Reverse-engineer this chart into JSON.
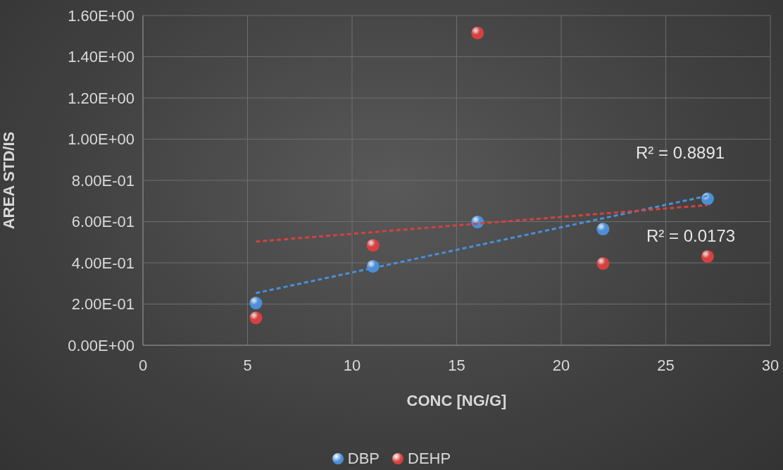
{
  "chart_data": {
    "type": "scatter",
    "xlabel": "CONC [NG/G]",
    "ylabel": "AREA STD/IS",
    "xlim": [
      0,
      30
    ],
    "xticks": [
      0,
      5,
      10,
      15,
      20,
      25,
      30
    ],
    "ylim": [
      0,
      1.6
    ],
    "yticks": [
      {
        "value": 0,
        "label": "0.00E+00"
      },
      {
        "value": 0.2,
        "label": "2.00E-01"
      },
      {
        "value": 0.4,
        "label": "4.00E-01"
      },
      {
        "value": 0.6,
        "label": "6.00E-01"
      },
      {
        "value": 0.8,
        "label": "8.00E-01"
      },
      {
        "value": 1.0,
        "label": "1.00E+00"
      },
      {
        "value": 1.2,
        "label": "1.20E+00"
      },
      {
        "value": 1.4,
        "label": "1.40E+00"
      },
      {
        "value": 1.6,
        "label": "1.60E+00"
      }
    ],
    "grid": true,
    "legend": "bottom",
    "marker": "circle",
    "x": [
      5.4,
      11,
      16,
      22,
      27
    ],
    "series": [
      {
        "name": "DBP",
        "color": "#4a8fd8",
        "values": [
          0.205,
          0.383,
          0.598,
          0.564,
          0.711
        ]
      },
      {
        "name": "DEHP",
        "color": "#d84040",
        "values": [
          0.133,
          0.485,
          1.515,
          0.397,
          0.431
        ]
      },
      {
        "type": "line",
        "color": "#4a8fd8",
        "values": [
          0.253,
          0.375,
          0.485,
          0.616,
          0.725
        ],
        "line_style": "dashed",
        "marker": "none"
      },
      {
        "type": "line",
        "color": "#d84040",
        "values": [
          0.503,
          0.549,
          0.59,
          0.639,
          0.68
        ],
        "line_style": "dashed",
        "marker": "none"
      }
    ],
    "annotations": [
      "R² = 0.8891",
      "R² = 0.0173"
    ]
  }
}
